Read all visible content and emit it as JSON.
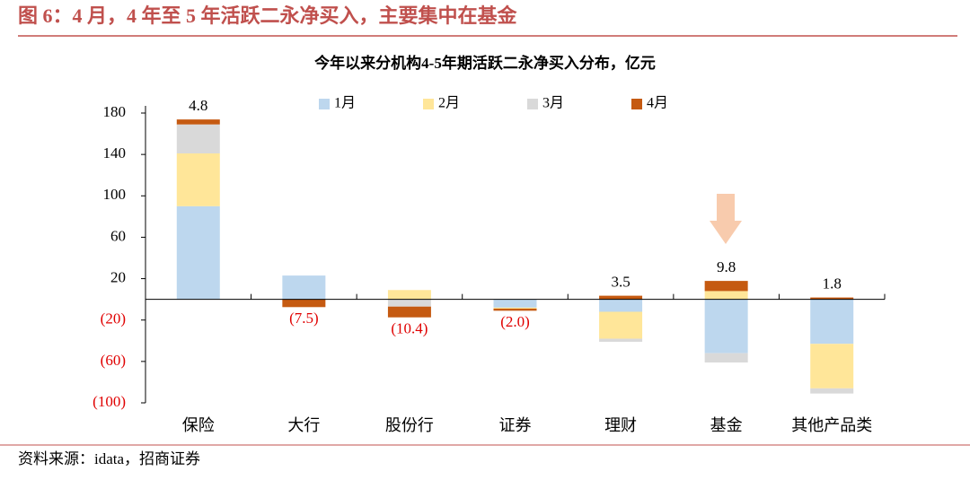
{
  "header": {
    "title": "图 6：4 月，4 年至 5 年活跃二永净买入，主要集中在基金"
  },
  "chart_data": {
    "type": "bar",
    "stacked": true,
    "title": "今年以来分机构4-5年期活跃二永净买入分布，亿元",
    "categories": [
      "保险",
      "大行",
      "股份行",
      "证券",
      "理财",
      "基金",
      "其他产品类"
    ],
    "series": [
      {
        "name": "1月",
        "color": "#bdd7ee",
        "values": [
          90,
          23,
          0,
          -8,
          -12,
          -52,
          -43
        ]
      },
      {
        "name": "2月",
        "color": "#ffe699",
        "values": [
          51,
          0,
          9,
          -1,
          -26,
          8,
          -43
        ]
      },
      {
        "name": "3月",
        "color": "#d9d9d9",
        "values": [
          28,
          0,
          -7,
          0,
          -3,
          -9,
          -5
        ]
      },
      {
        "name": "4月",
        "color": "#c55a11",
        "values": [
          4.8,
          -7.5,
          -10.4,
          -2.0,
          3.5,
          9.8,
          1.8
        ],
        "value_labels": [
          "4.8",
          "(7.5)",
          "(10.4)",
          "(2.0)",
          "3.5",
          "9.8",
          "1.8"
        ]
      }
    ],
    "ylim": [
      -100,
      180
    ],
    "yticks": [
      {
        "value": -100,
        "label": "(100)"
      },
      {
        "value": -60,
        "label": "(60)"
      },
      {
        "value": -20,
        "label": "(20)"
      },
      20,
      60,
      100,
      140,
      180
    ],
    "negative_color": "#e00000",
    "legend": "top"
  },
  "source": "资料来源：idata，招商证券"
}
